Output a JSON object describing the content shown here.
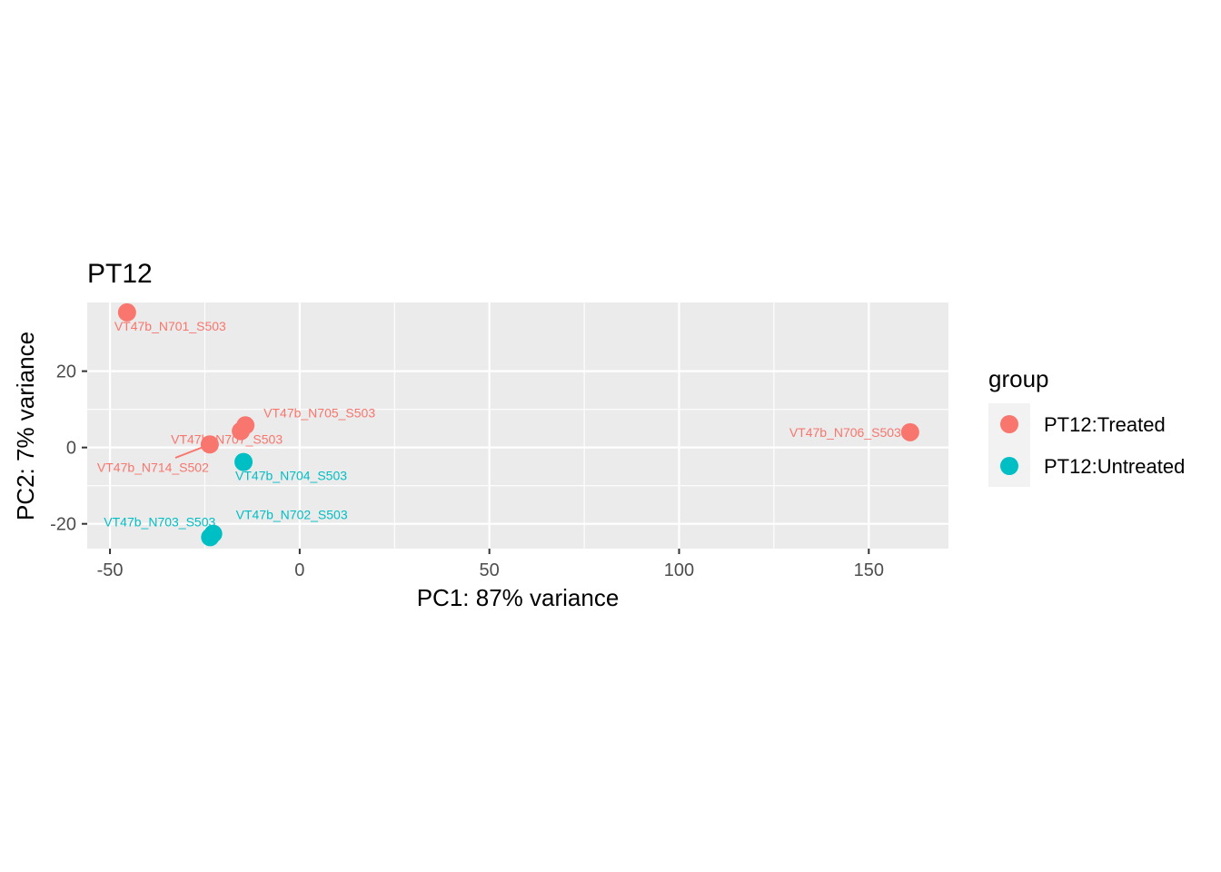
{
  "chart_data": {
    "type": "scatter",
    "title": "PT12",
    "xlabel": "PC1: 87% variance",
    "ylabel": "PC2: 7% variance",
    "xlim": [
      -56,
      171
    ],
    "ylim": [
      -26.5,
      38
    ],
    "x_ticks": [
      -50,
      0,
      50,
      100,
      150
    ],
    "x_tick_labels": [
      "-50",
      "0",
      "50",
      "100",
      "150"
    ],
    "y_ticks": [
      -20,
      0,
      20
    ],
    "y_tick_labels": [
      "-20",
      "0",
      "20"
    ],
    "grid": true,
    "legend": {
      "title": "group",
      "position": "right",
      "entries": [
        {
          "label": "PT12:Treated",
          "color": "#F8766D"
        },
        {
          "label": "PT12:Untreated",
          "color": "#00BFC4"
        }
      ]
    },
    "series": [
      {
        "name": "PT12:Treated",
        "color": "#F8766D",
        "points": [
          {
            "label": "VT47b_N701_S503",
            "x": -45.5,
            "y": 35.4
          },
          {
            "label": "VT47b_N705_S503",
            "x": -14.3,
            "y": 5.8
          },
          {
            "label": "VT47b_N707_S503",
            "x": -15.5,
            "y": 4.3
          },
          {
            "label": "VT47b_N714_S502",
            "x": -23.7,
            "y": 0.8
          },
          {
            "label": "VT47b_N706_S503",
            "x": 160.9,
            "y": 4.0
          }
        ]
      },
      {
        "name": "PT12:Untreated",
        "color": "#00BFC4",
        "points": [
          {
            "label": "VT47b_N704_S503",
            "x": -14.8,
            "y": -3.8
          },
          {
            "label": "VT47b_N702_S503",
            "x": -22.8,
            "y": -22.6
          },
          {
            "label": "VT47b_N703_S503",
            "x": -23.6,
            "y": -23.5
          }
        ]
      }
    ]
  }
}
